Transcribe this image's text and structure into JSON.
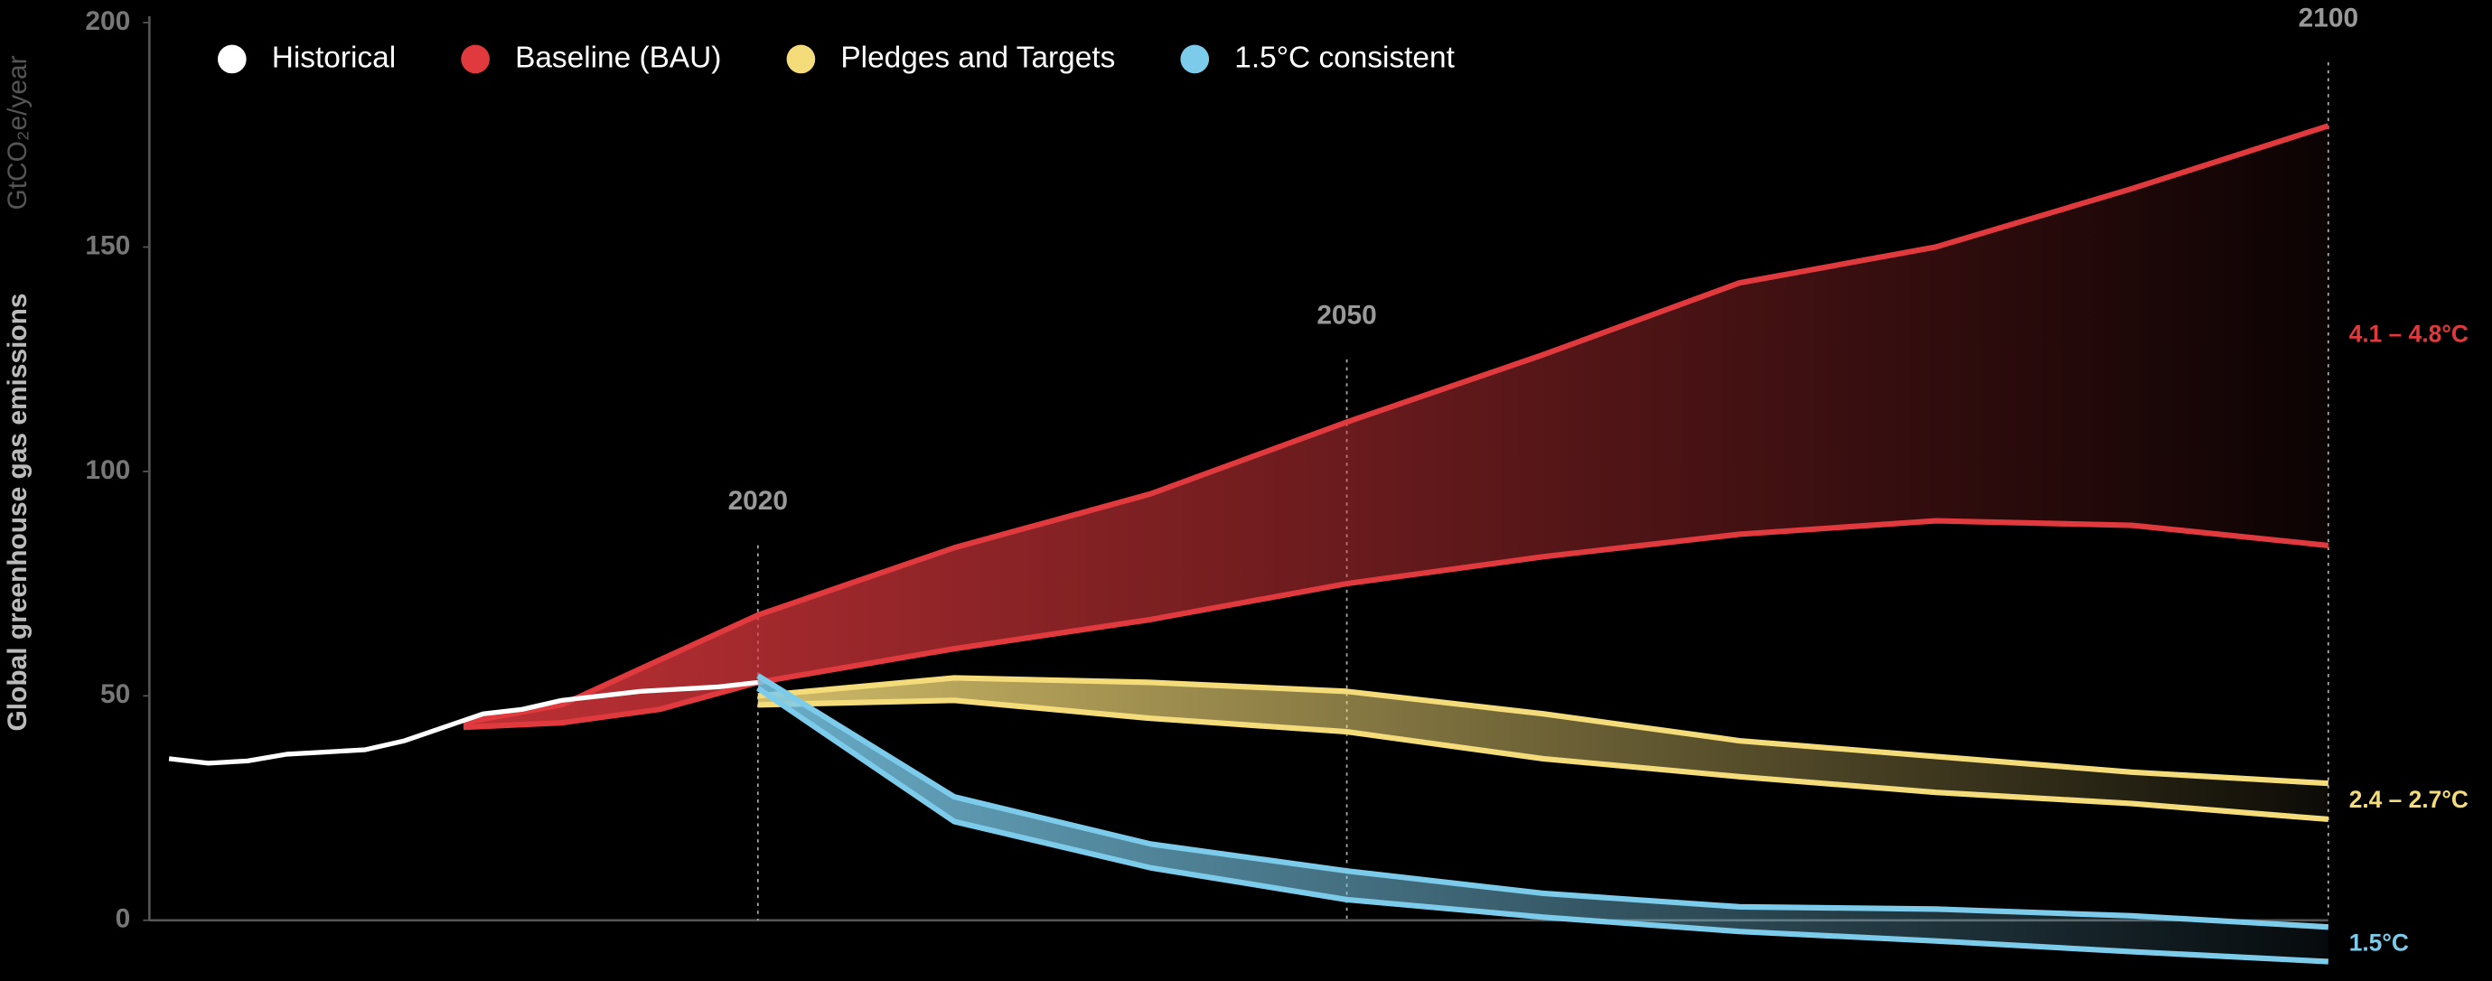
{
  "chart_data": {
    "type": "line",
    "ylabel": "Global greenhouse gas emissions",
    "yunit": "GtCO₂e/year",
    "xlim": [
      1989,
      2100
    ],
    "xticks": [
      2020,
      2050,
      2100
    ],
    "ylim": [
      0,
      200
    ],
    "yticks": [
      0,
      50,
      100,
      150,
      200
    ],
    "grid": false,
    "series": [
      {
        "name": "Historical",
        "kind": "line",
        "color": "#ffffff",
        "x": [
          1990,
          1992,
          1994,
          1996,
          1998,
          2000,
          2002,
          2004,
          2006,
          2008,
          2010,
          2012,
          2014,
          2016,
          2018,
          2020
        ],
        "values": [
          36,
          35,
          35.5,
          37,
          37.5,
          38,
          40,
          43,
          46,
          47,
          49,
          50,
          51,
          51.5,
          52,
          53
        ]
      },
      {
        "name": "Baseline (BAU)",
        "kind": "band",
        "color": "#e0393e",
        "annotation": "4.1 – 4.8°C",
        "x": [
          2005,
          2010,
          2015,
          2020,
          2030,
          2040,
          2050,
          2060,
          2070,
          2080,
          2090,
          2100
        ],
        "upper": [
          44,
          48,
          58,
          68,
          83,
          95,
          111,
          126,
          142,
          150,
          163,
          177
        ],
        "lower": [
          43,
          44,
          47,
          53,
          60.5,
          67,
          75,
          81,
          86,
          89,
          88,
          83.5
        ]
      },
      {
        "name": "Pledges and Targets",
        "kind": "band",
        "color": "#f5dc7a",
        "annotation": "2.4 – 2.7°C",
        "x": [
          2020,
          2030,
          2040,
          2050,
          2060,
          2070,
          2080,
          2090,
          2100
        ],
        "upper": [
          50,
          54,
          53,
          51,
          46,
          40,
          36.5,
          33,
          30.5
        ],
        "lower": [
          48,
          49,
          45,
          42,
          36,
          32,
          28.5,
          26,
          22.5
        ]
      },
      {
        "name": "1.5°C consistent",
        "kind": "band",
        "color": "#7ccbeb",
        "annotation": "1.5°C",
        "x": [
          2020,
          2030,
          2040,
          2050,
          2060,
          2070,
          2080,
          2090,
          2100
        ],
        "upper": [
          54.5,
          27.5,
          17,
          11,
          6,
          3,
          2.5,
          1,
          -1.5
        ],
        "lower": [
          51.7,
          22,
          11.7,
          4.6,
          0.7,
          -2.5,
          -4.6,
          -7,
          -9.2
        ]
      }
    ]
  }
}
